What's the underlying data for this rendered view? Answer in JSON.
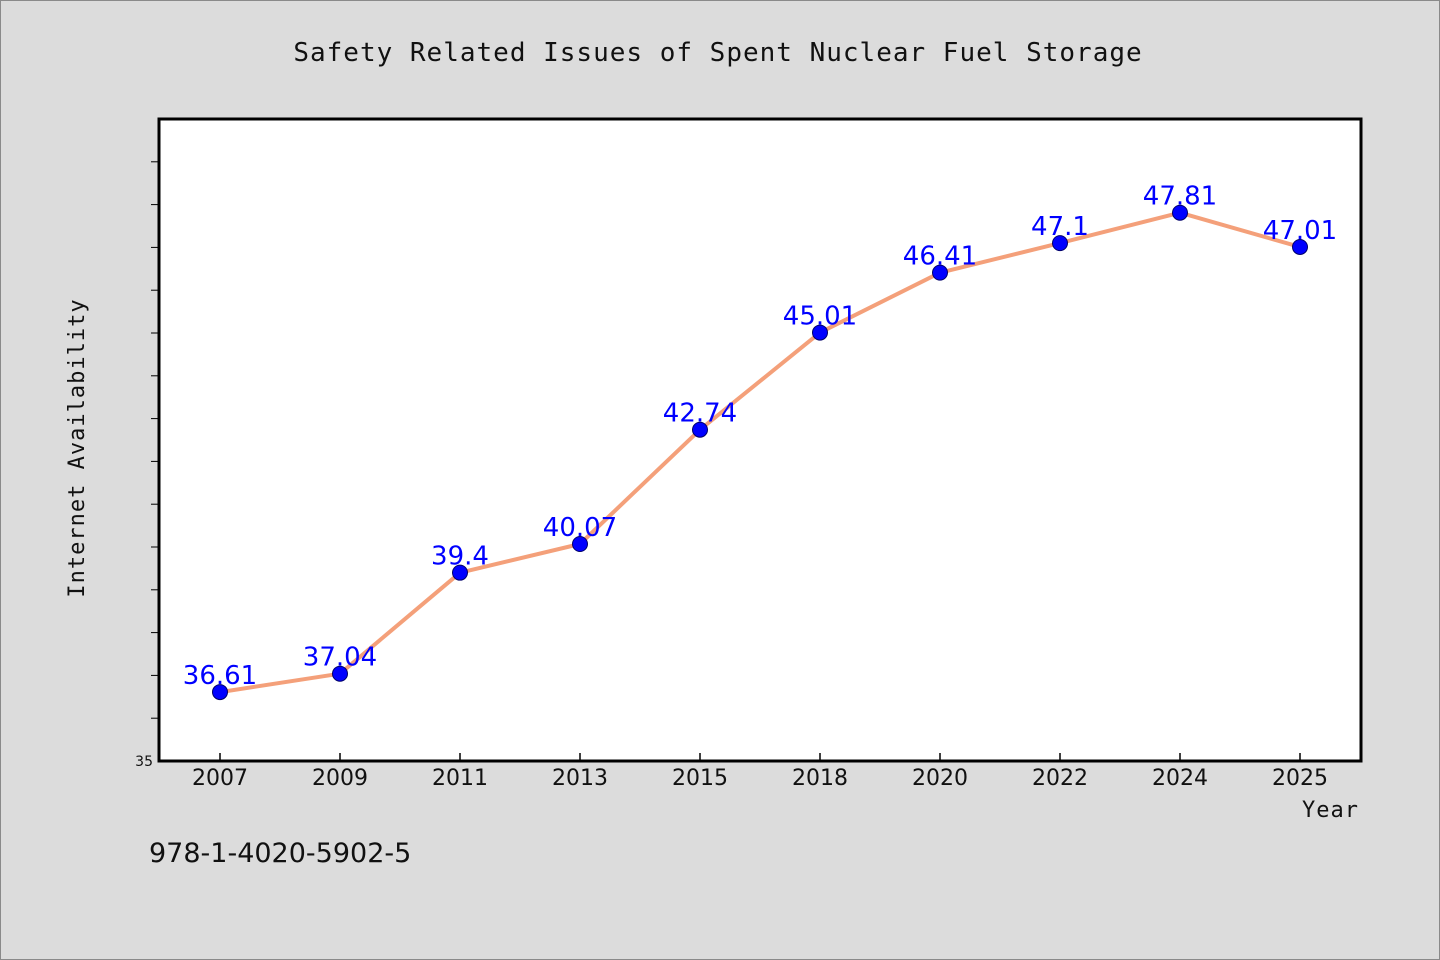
{
  "chart_data": {
    "type": "line",
    "title": "Safety Related Issues of Spent Nuclear Fuel Storage",
    "xlabel": "Year",
    "ylabel": "Internet Availability",
    "categories": [
      "2007",
      "2009",
      "2011",
      "2013",
      "2015",
      "2018",
      "2020",
      "2022",
      "2024",
      "2025"
    ],
    "series": [
      {
        "values": [
          36.61,
          37.04,
          39.4,
          40.07,
          42.74,
          45.01,
          46.41,
          47.1,
          47.81,
          47.01
        ],
        "data_labels": [
          "36.61",
          "37.04",
          "39.4",
          "40.07",
          "42.74",
          "45.01",
          "46.41",
          "47.1",
          "47.81",
          "47.01"
        ]
      }
    ],
    "ylim": [
      35,
      50
    ],
    "y_tick_labels": [
      "35"
    ],
    "grid": false,
    "line_color": "#f4a07a",
    "marker_color": "#0000ff",
    "label_color": "#0000ff",
    "background_color": "#dcdcdc",
    "plot_background": "#ffffff"
  },
  "footer": {
    "text": "978-1-4020-5902-5"
  }
}
